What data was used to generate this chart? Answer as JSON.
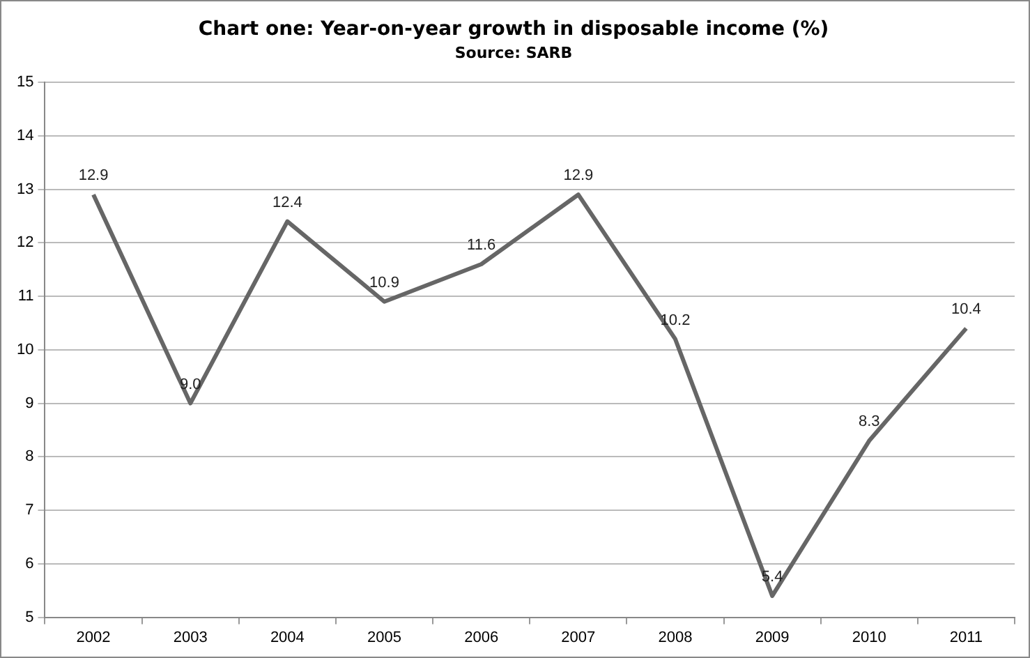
{
  "chart_data": {
    "type": "line",
    "title": "Chart one: Year-on-year growth in disposable income (%)",
    "subtitle": "Source: SARB",
    "categories": [
      "2002",
      "2003",
      "2004",
      "2005",
      "2006",
      "2007",
      "2008",
      "2009",
      "2010",
      "2011"
    ],
    "series": [
      {
        "color": "#666666",
        "values": [
          12.9,
          9.0,
          12.4,
          10.9,
          11.6,
          12.9,
          10.2,
          5.4,
          8.3,
          10.4
        ],
        "value_labels": [
          "12.9",
          "9.0",
          "12.4",
          "10.9",
          "11.6",
          "12.9",
          "10.2",
          "5.4",
          "8.3",
          "10.4"
        ]
      }
    ],
    "ylim": [
      5,
      15
    ],
    "yticks": [
      5,
      6,
      7,
      8,
      9,
      10,
      11,
      12,
      13,
      14,
      15
    ],
    "grid": "y",
    "legend": false,
    "marker": "none",
    "line_style": "solid"
  }
}
